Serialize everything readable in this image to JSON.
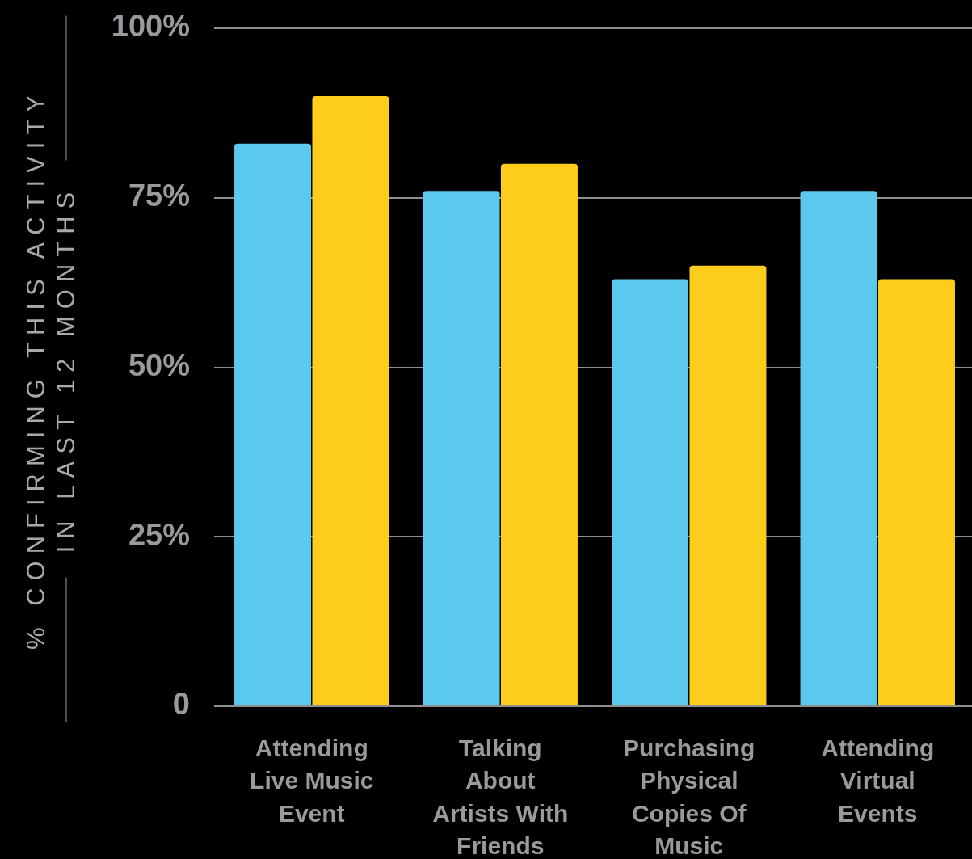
{
  "chart_data": {
    "type": "bar",
    "ylabel": "% CONFIRMING THIS ACTIVITY\nIN LAST 12 MONTHS",
    "categories": [
      "Attending Live Music Event",
      "Talking About Artists With Friends",
      "Purchasing Physical Copies Of Music",
      "Attending Virtual Events"
    ],
    "series": [
      {
        "color": "#5bc8ee",
        "values": [
          83,
          76,
          63,
          76
        ]
      },
      {
        "color": "#fecc1a",
        "values": [
          90,
          80,
          65,
          63
        ]
      }
    ],
    "ylim": [
      0,
      100
    ],
    "yticks": [
      0,
      {
        "value": 25,
        "label": "25%"
      },
      {
        "value": 50,
        "label": "50%"
      },
      {
        "value": 75,
        "label": "75%"
      },
      {
        "value": 100,
        "label": "100%"
      }
    ],
    "grid": "y"
  }
}
